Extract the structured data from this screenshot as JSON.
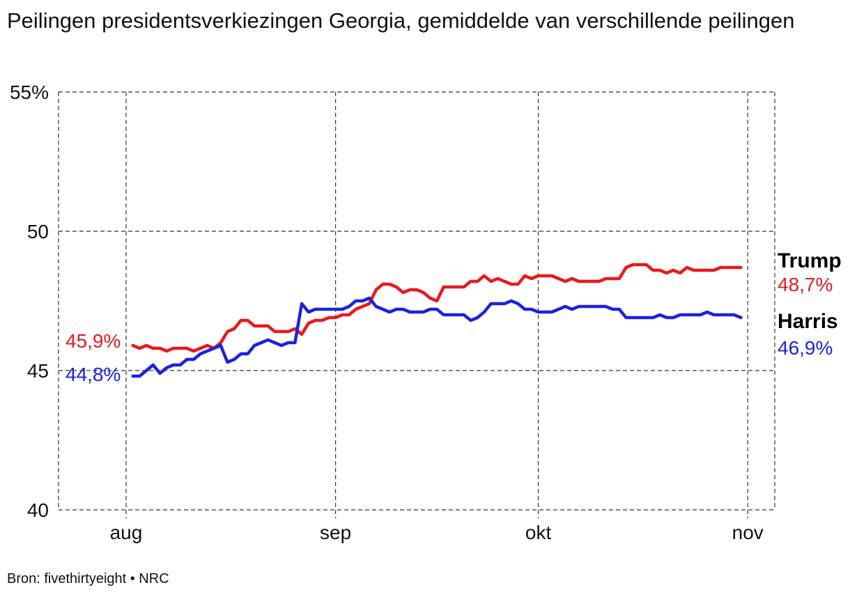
{
  "title": "Peilingen presidentsverkiezingen Georgia, gemiddelde van verschillende peilingen",
  "source": "Bron: fivethirtyeight • NRC",
  "colors": {
    "trump": "#e8191b",
    "harris": "#1a22e0",
    "grid": "#333333"
  },
  "chart_data": {
    "type": "line",
    "title": "Peilingen presidentsverkiezingen Georgia, gemiddelde van verschillende peilingen",
    "xlabel": "",
    "ylabel": "",
    "ylim": [
      40,
      55
    ],
    "xlim": [
      "2024-07-22",
      "2024-11-05"
    ],
    "y_ticks": [
      {
        "value": 55,
        "label": "55%"
      },
      {
        "value": 50,
        "label": "50"
      },
      {
        "value": 45,
        "label": "45"
      },
      {
        "value": 40,
        "label": "40"
      }
    ],
    "x_ticks": [
      {
        "date": "2024-08-01",
        "label": "aug"
      },
      {
        "date": "2024-09-01",
        "label": "sep"
      },
      {
        "date": "2024-10-01",
        "label": "okt"
      },
      {
        "date": "2024-11-01",
        "label": "nov"
      }
    ],
    "grid": true,
    "x": [
      "2024-08-02",
      "2024-08-03",
      "2024-08-04",
      "2024-08-05",
      "2024-08-06",
      "2024-08-07",
      "2024-08-08",
      "2024-08-09",
      "2024-08-10",
      "2024-08-11",
      "2024-08-12",
      "2024-08-13",
      "2024-08-14",
      "2024-08-15",
      "2024-08-16",
      "2024-08-17",
      "2024-08-18",
      "2024-08-19",
      "2024-08-20",
      "2024-08-21",
      "2024-08-22",
      "2024-08-23",
      "2024-08-24",
      "2024-08-25",
      "2024-08-26",
      "2024-08-27",
      "2024-08-28",
      "2024-08-29",
      "2024-08-30",
      "2024-08-31",
      "2024-09-01",
      "2024-09-02",
      "2024-09-03",
      "2024-09-04",
      "2024-09-05",
      "2024-09-06",
      "2024-09-07",
      "2024-09-08",
      "2024-09-09",
      "2024-09-10",
      "2024-09-11",
      "2024-09-12",
      "2024-09-13",
      "2024-09-14",
      "2024-09-15",
      "2024-09-16",
      "2024-09-17",
      "2024-09-18",
      "2024-09-19",
      "2024-09-20",
      "2024-09-21",
      "2024-09-22",
      "2024-09-23",
      "2024-09-24",
      "2024-09-25",
      "2024-09-26",
      "2024-09-27",
      "2024-09-28",
      "2024-09-29",
      "2024-09-30",
      "2024-10-01",
      "2024-10-02",
      "2024-10-03",
      "2024-10-04",
      "2024-10-05",
      "2024-10-06",
      "2024-10-07",
      "2024-10-08",
      "2024-10-09",
      "2024-10-10",
      "2024-10-11",
      "2024-10-12",
      "2024-10-13",
      "2024-10-14",
      "2024-10-15",
      "2024-10-16",
      "2024-10-17",
      "2024-10-18",
      "2024-10-19",
      "2024-10-20",
      "2024-10-21",
      "2024-10-22",
      "2024-10-23",
      "2024-10-24",
      "2024-10-25",
      "2024-10-26",
      "2024-10-27",
      "2024-10-28",
      "2024-10-29",
      "2024-10-30",
      "2024-10-31"
    ],
    "series": [
      {
        "name": "Trump",
        "end_label": "48,7%",
        "start_label": "45,9%",
        "color": "#e8191b",
        "values": [
          45.9,
          45.8,
          45.9,
          45.8,
          45.8,
          45.7,
          45.8,
          45.8,
          45.8,
          45.7,
          45.8,
          45.9,
          45.8,
          46.0,
          46.4,
          46.5,
          46.8,
          46.8,
          46.6,
          46.6,
          46.6,
          46.4,
          46.4,
          46.4,
          46.5,
          46.3,
          46.7,
          46.8,
          46.8,
          46.9,
          46.9,
          47.0,
          47.0,
          47.2,
          47.3,
          47.4,
          47.9,
          48.1,
          48.1,
          48.0,
          47.8,
          47.9,
          47.9,
          47.8,
          47.6,
          47.5,
          48.0,
          48.0,
          48.0,
          48.0,
          48.2,
          48.2,
          48.4,
          48.2,
          48.3,
          48.2,
          48.1,
          48.1,
          48.4,
          48.3,
          48.4,
          48.4,
          48.4,
          48.3,
          48.2,
          48.3,
          48.2,
          48.2,
          48.2,
          48.2,
          48.3,
          48.3,
          48.3,
          48.7,
          48.8,
          48.8,
          48.8,
          48.6,
          48.6,
          48.5,
          48.6,
          48.5,
          48.7,
          48.6,
          48.6,
          48.6,
          48.6,
          48.7,
          48.7,
          48.7,
          48.7
        ]
      },
      {
        "name": "Harris",
        "end_label": "46,9%",
        "start_label": "44,8%",
        "color": "#1a22e0",
        "values": [
          44.8,
          44.8,
          45.0,
          45.2,
          44.9,
          45.1,
          45.2,
          45.2,
          45.4,
          45.4,
          45.6,
          45.7,
          45.8,
          45.9,
          45.3,
          45.4,
          45.6,
          45.6,
          45.9,
          46.0,
          46.1,
          46.0,
          45.9,
          46.0,
          46.0,
          47.4,
          47.1,
          47.2,
          47.2,
          47.2,
          47.2,
          47.2,
          47.3,
          47.5,
          47.5,
          47.6,
          47.3,
          47.2,
          47.1,
          47.2,
          47.2,
          47.1,
          47.1,
          47.1,
          47.2,
          47.2,
          47.0,
          47.0,
          47.0,
          47.0,
          46.8,
          46.9,
          47.1,
          47.4,
          47.4,
          47.4,
          47.5,
          47.4,
          47.2,
          47.2,
          47.1,
          47.1,
          47.1,
          47.2,
          47.3,
          47.2,
          47.3,
          47.3,
          47.3,
          47.3,
          47.3,
          47.2,
          47.2,
          46.9,
          46.9,
          46.9,
          46.9,
          46.9,
          47.0,
          46.9,
          46.9,
          47.0,
          47.0,
          47.0,
          47.0,
          47.1,
          47.0,
          47.0,
          47.0,
          47.0,
          46.9
        ]
      }
    ]
  }
}
